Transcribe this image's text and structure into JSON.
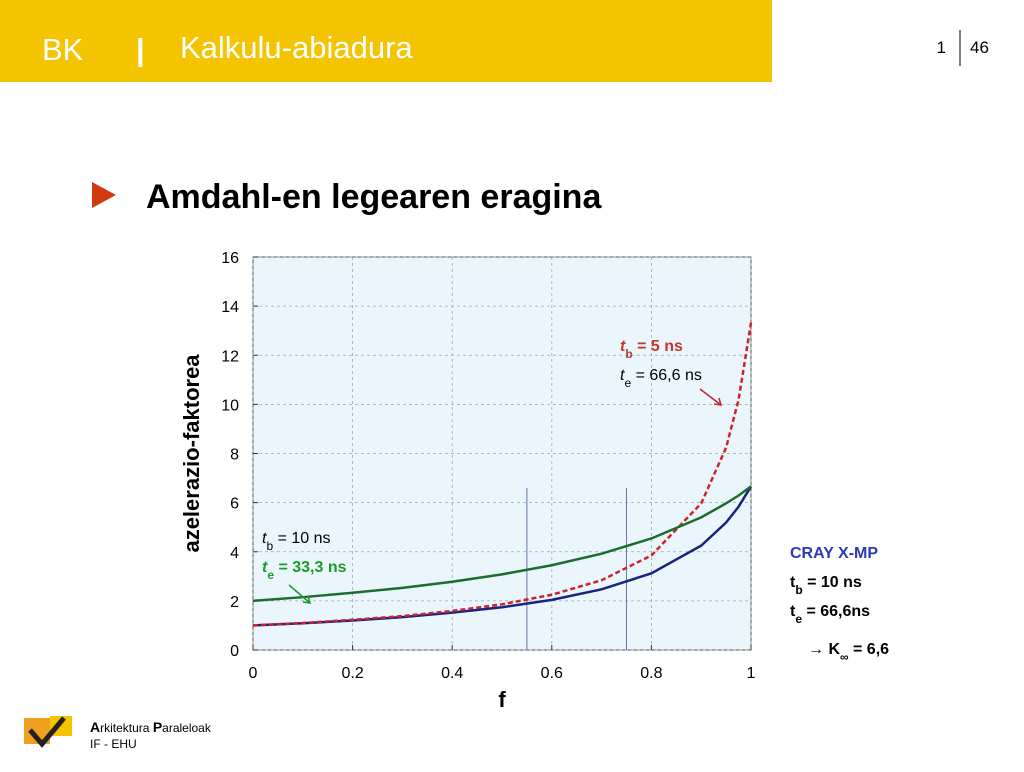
{
  "header": {
    "left": "BK",
    "separator": "|",
    "title": "Kalkulu-abiadura",
    "page": "1",
    "total": "46"
  },
  "slide_title": "Amdahl-en legearen eragina",
  "chart_data": {
    "type": "line",
    "x": [
      0,
      0.1,
      0.2,
      0.3,
      0.4,
      0.5,
      0.6,
      0.7,
      0.8,
      0.9,
      0.95,
      0.975,
      1
    ],
    "series": [
      {
        "color": "#1a237e",
        "dashed": false,
        "values": [
          1,
          1.09,
          1.2,
          1.34,
          1.52,
          1.74,
          2.04,
          2.47,
          3.12,
          4.25,
          5.19,
          5.83,
          6.66
        ]
      },
      {
        "color": "#d0202a",
        "dashed": true,
        "values": [
          1,
          1.1,
          1.23,
          1.38,
          1.59,
          1.86,
          2.25,
          2.84,
          3.85,
          5.97,
          8.24,
          10.18,
          13.32
        ]
      },
      {
        "color": "#1e6b2e",
        "dashed": false,
        "values": [
          2,
          2.15,
          2.33,
          2.53,
          2.78,
          3.08,
          3.45,
          3.92,
          4.54,
          5.4,
          5.97,
          6.29,
          6.66
        ]
      }
    ],
    "vlines_x": [
      0.55,
      0.75
    ],
    "vlines_top": 6.6,
    "xlim": [
      0,
      1
    ],
    "xticks": [
      0,
      0.2,
      0.4,
      0.6,
      0.8,
      1
    ],
    "ylim": [
      0,
      16
    ],
    "yticks": [
      0,
      2,
      4,
      6,
      8,
      10,
      12,
      14,
      16
    ],
    "grid": true,
    "xlabel": "f",
    "ylabel": "azelerazio-faktorea",
    "annotations": [
      {
        "lines": [
          {
            "parts": [
              "t",
              "b",
              " = 5 ns"
            ],
            "color": "#c0392b",
            "bold": true
          },
          {
            "parts": [
              "t",
              "e",
              " = 66,6 ns"
            ],
            "color": "#000000",
            "bold": false
          }
        ]
      },
      {
        "lines": [
          {
            "parts": [
              "t",
              "b",
              " = 10 ns"
            ],
            "color": "#000000",
            "bold": false
          },
          {
            "parts": [
              "t",
              "e",
              " = 33,3 ns"
            ],
            "color": "#1a9a2a",
            "bold": true
          }
        ]
      }
    ]
  },
  "cray": {
    "title": "CRAY X-MP",
    "lines": [
      [
        "t",
        "b",
        " = 10 ns"
      ],
      [
        "t",
        "e",
        " = 66,6ns"
      ]
    ],
    "result": [
      "→ K",
      "∞",
      " = 6,6"
    ]
  },
  "footer": {
    "line1": [
      "A",
      "rkitektura ",
      "P",
      "araleloak"
    ],
    "line2": "IF - EHU"
  }
}
